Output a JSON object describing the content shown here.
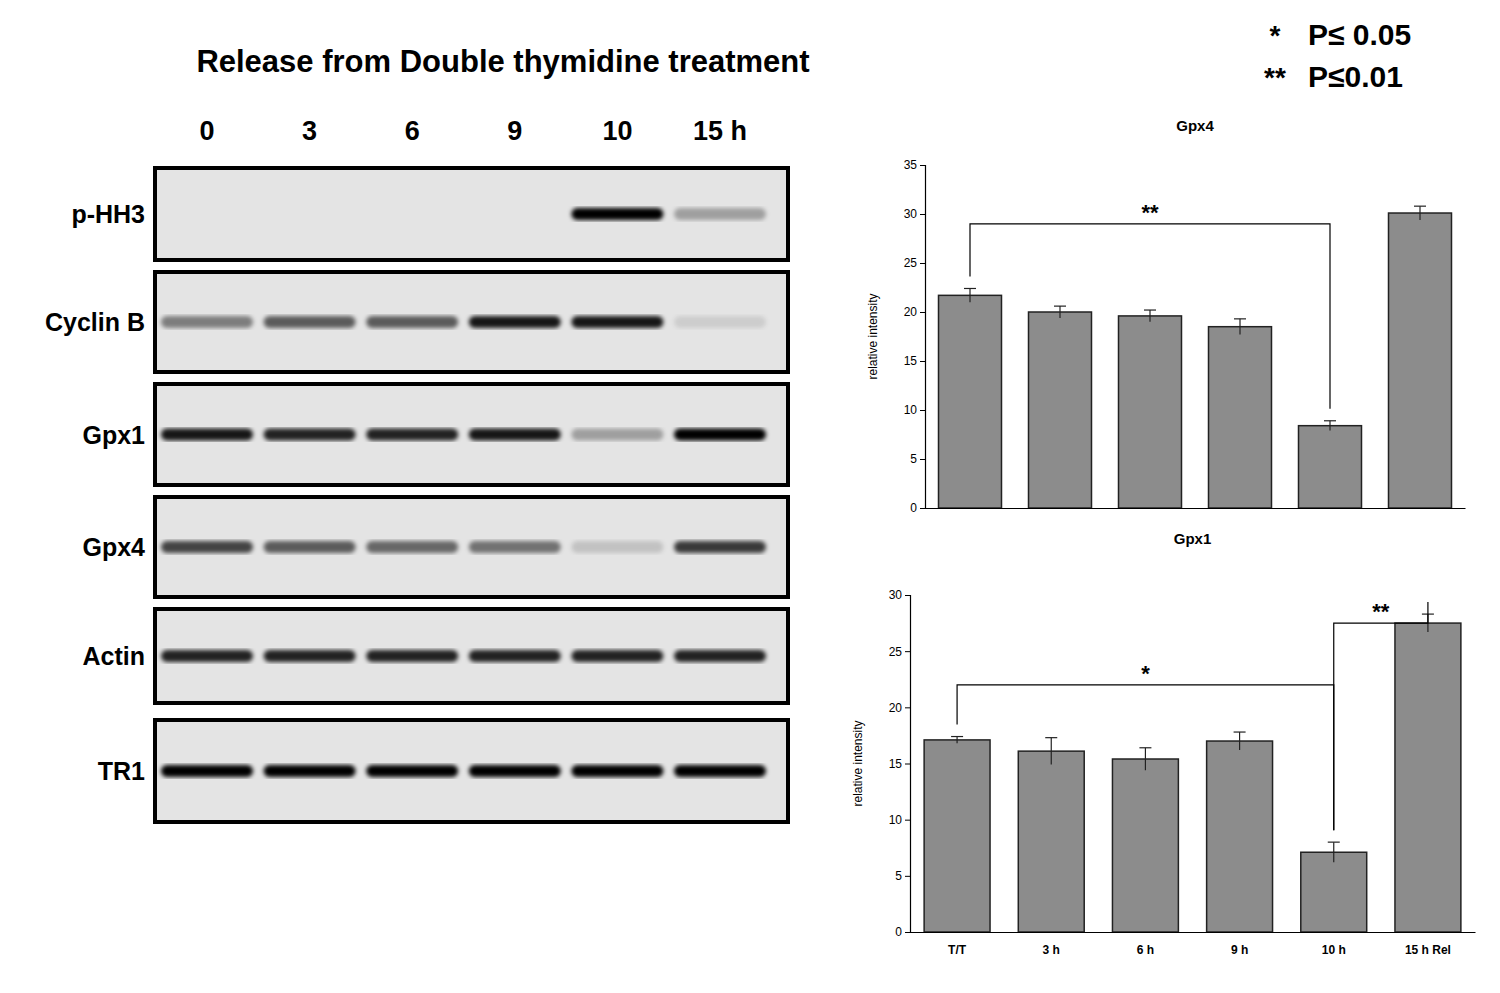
{
  "chart_data": [
    {
      "type": "bar",
      "title": "Gpx4",
      "y_label": "relative intensity",
      "categories": [
        null,
        null,
        null,
        null,
        null,
        null
      ],
      "values": [
        21.7,
        20.0,
        19.6,
        18.5,
        8.4,
        30.1
      ],
      "errors": [
        0.7,
        0.6,
        0.6,
        0.8,
        0.5,
        0.7
      ],
      "color": "#8c8c8c",
      "ylim": [
        0,
        35
      ],
      "yticks": [
        0,
        5,
        10,
        15,
        20,
        25,
        30,
        35
      ],
      "brackets": [
        {
          "text": "**",
          "between": [
            0,
            4
          ],
          "y": 29
        }
      ]
    },
    {
      "type": "bar",
      "title": "Gpx1",
      "y_label": "relative intensity",
      "categories": [
        "T/T",
        "3 h",
        "6 h",
        "9 h",
        "10 h",
        "15 h Rel"
      ],
      "values": [
        17.1,
        16.1,
        15.4,
        17.0,
        7.1,
        27.5
      ],
      "errors": [
        0.3,
        1.2,
        1.0,
        0.8,
        0.9,
        0.8
      ],
      "color": "#8c8c8c",
      "ylim": [
        0,
        30
      ],
      "yticks": [
        0,
        5,
        10,
        15,
        20,
        25,
        30
      ],
      "brackets": [
        {
          "text": "*",
          "between": [
            0,
            4
          ],
          "y": 22
        },
        {
          "text": "**",
          "between": [
            4,
            5
          ],
          "y": 27.5
        }
      ]
    }
  ],
  "significance": [
    {
      "symbol": "*",
      "label": "P≤ 0.05"
    },
    {
      "symbol": "**",
      "label": "P≤0.01"
    }
  ],
  "blot": {
    "title": "Release from Double thymidine treatment",
    "lanes": [
      "0",
      "3",
      "6",
      "9",
      "10",
      "15 h"
    ],
    "rows": [
      {
        "label": "p-HH3",
        "intensity": [
          0,
          0,
          0,
          0,
          1,
          0.3
        ]
      },
      {
        "label": "Cyclin B",
        "intensity": [
          0.45,
          0.6,
          0.6,
          0.9,
          0.9,
          0.1
        ]
      },
      {
        "label": "Gpx1",
        "intensity": [
          0.9,
          0.85,
          0.85,
          0.9,
          0.3,
          1
        ]
      },
      {
        "label": "Gpx4",
        "intensity": [
          0.7,
          0.6,
          0.55,
          0.5,
          0.15,
          0.75
        ]
      },
      {
        "label": "Actin",
        "intensity": [
          0.85,
          0.85,
          0.85,
          0.85,
          0.85,
          0.85
        ]
      },
      {
        "label": "TR1",
        "intensity": [
          1,
          1,
          1,
          1,
          1,
          1
        ]
      }
    ]
  }
}
